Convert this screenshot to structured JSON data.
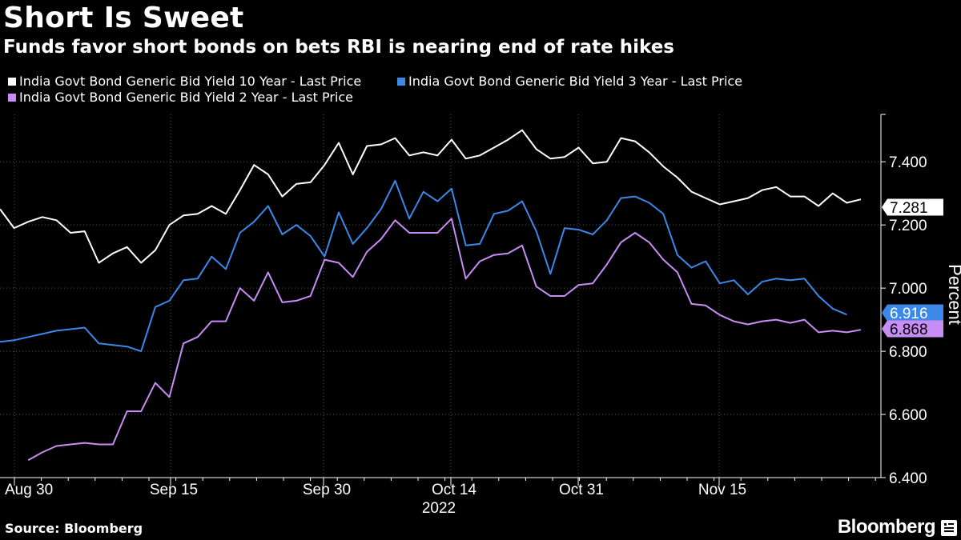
{
  "title": "Short Is Sweet",
  "subtitle": "Funds favor short bonds on bets RBI is nearing end of rate hikes",
  "source": "Source: Bloomberg",
  "brand": "Bloomberg",
  "chart_data": {
    "type": "line",
    "ylabel": "Percent",
    "xlabel": "2022",
    "ylim": [
      6.4,
      7.55
    ],
    "yticks": [
      "6.400",
      "6.600",
      "6.800",
      "7.000",
      "7.200",
      "7.400"
    ],
    "xticks": [
      "Aug 30",
      "Sep 15",
      "Sep 30",
      "Oct 14",
      "Oct 31",
      "Nov 15"
    ],
    "legend_position": "top-left",
    "series": [
      {
        "name": "India Govt Bond Generic Bid Yield 10 Year - Last Price",
        "color": "#ffffff",
        "last_label": "7.281",
        "values": [
          7.25,
          7.19,
          7.21,
          7.225,
          7.215,
          7.175,
          7.18,
          7.08,
          7.11,
          7.13,
          7.08,
          7.12,
          7.2,
          7.23,
          7.235,
          7.26,
          7.235,
          7.31,
          7.39,
          7.36,
          7.29,
          7.33,
          7.335,
          7.39,
          7.46,
          7.36,
          7.45,
          7.455,
          7.475,
          7.42,
          7.43,
          7.42,
          7.47,
          7.41,
          7.42,
          7.445,
          7.47,
          7.5,
          7.44,
          7.41,
          7.415,
          7.445,
          7.395,
          7.4,
          7.475,
          7.465,
          7.43,
          7.385,
          7.35,
          7.305,
          7.285,
          7.265,
          7.275,
          7.285,
          7.31,
          7.32,
          7.29,
          7.29,
          7.26,
          7.3,
          7.27,
          7.281
        ]
      },
      {
        "name": "India Govt Bond Generic Bid Yield 3 Year - Last Price",
        "color": "#3b88e8",
        "last_label": "6.916",
        "values": [
          6.83,
          6.835,
          6.845,
          6.855,
          6.865,
          6.87,
          6.875,
          6.825,
          6.82,
          6.815,
          6.8,
          6.94,
          6.96,
          7.025,
          7.03,
          7.1,
          7.06,
          7.175,
          7.21,
          7.26,
          7.17,
          7.2,
          7.165,
          7.1,
          7.24,
          7.14,
          7.19,
          7.25,
          7.34,
          7.22,
          7.305,
          7.275,
          7.315,
          7.135,
          7.14,
          7.235,
          7.245,
          7.275,
          7.18,
          7.045,
          7.19,
          7.185,
          7.17,
          7.215,
          7.285,
          7.29,
          7.27,
          7.235,
          7.105,
          7.065,
          7.085,
          7.015,
          7.025,
          6.98,
          7.02,
          7.03,
          7.025,
          7.03,
          6.975,
          6.935,
          6.916
        ]
      },
      {
        "name": "India Govt Bond Generic Bid Yield 2 Year - Last Price",
        "color": "#c88cf5",
        "last_label": "6.868",
        "values": [
          null,
          null,
          6.455,
          6.48,
          6.5,
          6.505,
          6.51,
          6.505,
          6.505,
          6.61,
          6.61,
          6.7,
          6.655,
          6.825,
          6.845,
          6.895,
          6.895,
          7.0,
          6.96,
          7.05,
          6.955,
          6.96,
          6.975,
          7.09,
          7.08,
          7.035,
          7.115,
          7.155,
          7.215,
          7.175,
          7.175,
          7.175,
          7.22,
          7.03,
          7.085,
          7.105,
          7.11,
          7.135,
          7.005,
          6.975,
          6.975,
          7.01,
          7.015,
          7.075,
          7.145,
          7.175,
          7.145,
          7.09,
          7.05,
          6.95,
          6.945,
          6.915,
          6.895,
          6.885,
          6.895,
          6.9,
          6.89,
          6.9,
          6.86,
          6.865,
          6.86,
          6.868
        ]
      }
    ]
  }
}
